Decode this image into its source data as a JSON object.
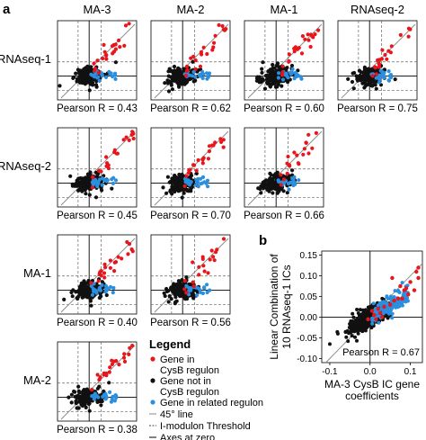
{
  "panel_labels": {
    "a": "a",
    "b": "b"
  },
  "colors": {
    "regulon": "#e8151b",
    "not_in_regulon": "#111111",
    "related": "#2b8fe0",
    "line": "#888888",
    "axes": "#000000"
  },
  "legend": {
    "title": "Legend",
    "items": [
      {
        "kind": "point",
        "color": "regulon",
        "label": [
          "Gene in",
          "CysB regulon"
        ]
      },
      {
        "kind": "point",
        "color": "not_in_regulon",
        "label": [
          "Gene not in",
          "CysB regulon"
        ]
      },
      {
        "kind": "point",
        "color": "related",
        "label": [
          "Gene in related regulon"
        ]
      },
      {
        "kind": "solid",
        "label": [
          "45° line"
        ]
      },
      {
        "kind": "dashed",
        "label": [
          "I-modulon Threshold"
        ]
      },
      {
        "kind": "axis",
        "label": [
          "Axes at zero"
        ]
      }
    ]
  },
  "chart_data": [
    {
      "type": "scatter",
      "panel": "a",
      "column_labels": [
        "MA-3",
        "MA-2",
        "MA-1",
        "RNAseq-2"
      ],
      "row_labels": [
        "RNAseq-1",
        "RNAseq-2",
        "MA-1",
        "MA-2"
      ],
      "pairs": [
        {
          "row": 0,
          "col": 0,
          "pearson_label": "Pearson R = 0.43",
          "r": 0.43
        },
        {
          "row": 0,
          "col": 1,
          "pearson_label": "Pearson R = 0.62",
          "r": 0.62
        },
        {
          "row": 0,
          "col": 2,
          "pearson_label": "Pearson R = 0.60",
          "r": 0.6
        },
        {
          "row": 0,
          "col": 3,
          "pearson_label": "Pearson R = 0.75",
          "r": 0.75
        },
        {
          "row": 1,
          "col": 0,
          "pearson_label": "Pearson R = 0.45",
          "r": 0.45
        },
        {
          "row": 1,
          "col": 1,
          "pearson_label": "Pearson R = 0.70",
          "r": 0.7
        },
        {
          "row": 1,
          "col": 2,
          "pearson_label": "Pearson R = 0.66",
          "r": 0.66
        },
        {
          "row": 2,
          "col": 0,
          "pearson_label": "Pearson R = 0.40",
          "r": 0.4
        },
        {
          "row": 2,
          "col": 1,
          "pearson_label": "Pearson R = 0.56",
          "r": 0.56
        },
        {
          "row": 3,
          "col": 0,
          "pearson_label": "Pearson R = 0.38",
          "r": 0.38
        }
      ],
      "series_points_approx": {
        "regulon_red": 22,
        "not_in_regulon_black": 160,
        "related_blue": 22
      }
    },
    {
      "type": "scatter",
      "panel": "b",
      "xlabel": [
        "MA-3 CysB IC gene",
        "coefficients"
      ],
      "ylabel": [
        "Linear Combination of",
        "10 RNAseq-1 ICs"
      ],
      "xlim": [
        -0.12,
        0.13
      ],
      "ylim": [
        -0.11,
        0.16
      ],
      "xticks": [
        -0.1,
        0.0,
        0.1
      ],
      "xtick_labels": [
        "-0.1",
        "0.0",
        "0.1"
      ],
      "yticks": [
        -0.1,
        -0.05,
        0.0,
        0.05,
        0.1,
        0.15
      ],
      "ytick_labels": [
        "-0.10",
        "-0.05",
        "0.00",
        "0.05",
        "0.10",
        "0.15"
      ],
      "pearson_label": "Pearson R = 0.67",
      "r": 0.67,
      "red_points": [
        [
          0.055,
          0.095
        ],
        [
          0.075,
          0.075
        ],
        [
          0.1,
          0.085
        ],
        [
          0.115,
          0.11
        ],
        [
          0.12,
          0.12
        ],
        [
          0.12,
          0.095
        ],
        [
          0.085,
          0.065
        ],
        [
          0.09,
          0.07
        ],
        [
          0.095,
          0.055
        ],
        [
          0.06,
          0.04
        ],
        [
          0.07,
          0.045
        ],
        [
          0.05,
          0.03
        ],
        [
          0.035,
          0.025
        ],
        [
          0.025,
          0.01
        ],
        [
          0.02,
          0.02
        ],
        [
          0.01,
          0.005
        ],
        [
          0.005,
          0.015
        ],
        [
          -0.005,
          -0.005
        ],
        [
          0.03,
          0.0
        ],
        [
          0.015,
          -0.005
        ],
        [
          0.11,
          0.065
        ],
        [
          0.08,
          0.045
        ]
      ]
    }
  ]
}
